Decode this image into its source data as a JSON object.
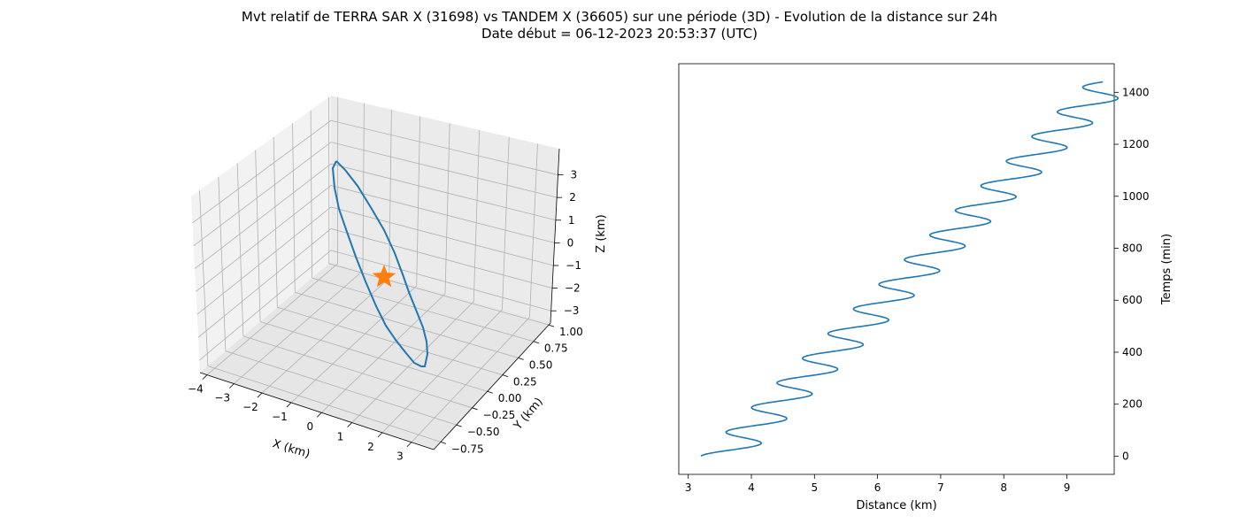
{
  "title": "Mvt relatif de TERRA SAR X (31698) vs TANDEM X (36605) sur une période (3D) - Evolution de la distance sur 24h",
  "subtitle": "Date début = 06-12-2023 20:53:37 (UTC)",
  "chart_data": [
    {
      "type": "line3d",
      "xlabel": "X (km)",
      "ylabel": "Y (km)",
      "zlabel": "Z (km)",
      "x_ticks": [
        "−4",
        "−3",
        "−2",
        "−1",
        "0",
        "1",
        "2",
        "3"
      ],
      "y_ticks": [
        "−0.75",
        "−0.50",
        "−0.25",
        "0.00",
        "0.25",
        "0.50",
        "0.75",
        "1.00"
      ],
      "z_ticks": [
        "−3",
        "−2",
        "−1",
        "0",
        "1",
        "2",
        "3"
      ],
      "series": [
        {
          "values": "closed relative-motion ellipse around origin (x: −4.3…3.0 km, z: −3.2…3.4 km)",
          "color": "#1f77b4"
        },
        {
          "marker": "star",
          "point": [
            0,
            0,
            0
          ],
          "color": "#ff7f0e"
        }
      ],
      "grid": true
    },
    {
      "type": "line",
      "xlabel": "Distance (km)",
      "ylabel": "Temps (min)",
      "xlim": [
        2.85,
        9.75
      ],
      "ylim": [
        -70,
        1510
      ],
      "x_ticks": [
        "3",
        "4",
        "5",
        "6",
        "7",
        "8",
        "9"
      ],
      "y_ticks": [
        "0",
        "200",
        "400",
        "600",
        "800",
        "1000",
        "1200",
        "1400"
      ],
      "y_axis_side": "right",
      "series": [
        {
          "color": "#1f77b4",
          "formula": "distance = 3.2 + 0.00426*t - 0.375*cos(2*pi*t/94.8)",
          "t_range_min": [
            0,
            1440
          ]
        }
      ]
    }
  ]
}
